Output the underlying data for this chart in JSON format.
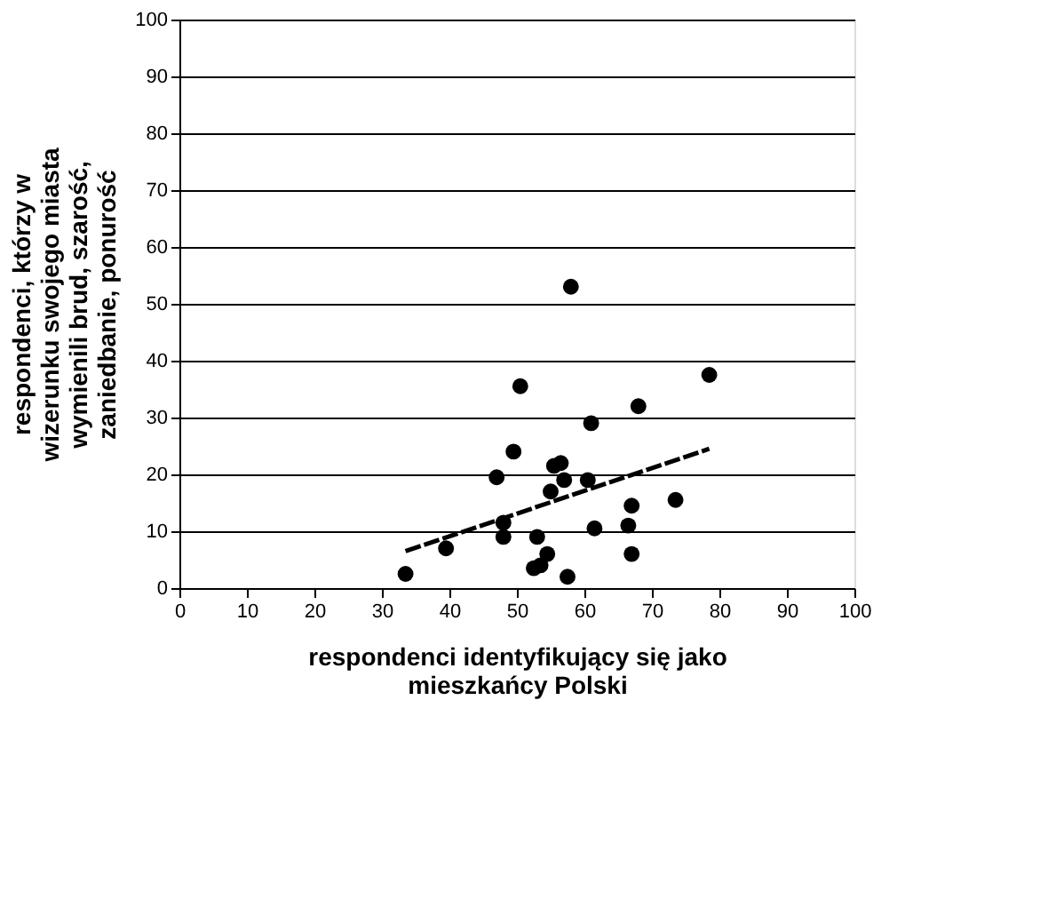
{
  "chart_data": {
    "type": "scatter",
    "xlabel": "respondenci identyfikujący się jako mieszkańcy Polski",
    "ylabel": "respondenci, którzy w wizerunku swojego miasta wymienili brud, szarość, zaniedbanie, ponurość",
    "xlim": [
      0,
      100
    ],
    "ylim": [
      0,
      100
    ],
    "xticks": [
      0,
      10,
      20,
      30,
      40,
      50,
      60,
      70,
      80,
      90,
      100
    ],
    "yticks": [
      0,
      10,
      20,
      30,
      40,
      50,
      60,
      70,
      80,
      90,
      100
    ],
    "grid": "y",
    "marker": "circle",
    "series": [
      {
        "color": "#000000",
        "x": [
          33.5,
          39.5,
          47,
          48,
          48,
          49.5,
          50.5,
          52.5,
          53,
          53.5,
          54.5,
          55,
          55.5,
          56.5,
          57,
          57.5,
          58,
          60.5,
          61,
          61.5,
          66.5,
          67,
          67,
          68,
          73.5,
          78.5
        ],
        "values": [
          2.5,
          7,
          19.5,
          11.5,
          9,
          24,
          35.5,
          3.5,
          9,
          4,
          6,
          17,
          21.5,
          22,
          19,
          2,
          53,
          19,
          29,
          10.5,
          11,
          6,
          14.5,
          32,
          15.5,
          37.5
        ]
      },
      {
        "type": "line",
        "marker": "none",
        "line_style": "dashed",
        "color": "#000000",
        "x": [
          33.5,
          78.5
        ],
        "values": [
          6.5,
          24.5
        ]
      }
    ]
  }
}
